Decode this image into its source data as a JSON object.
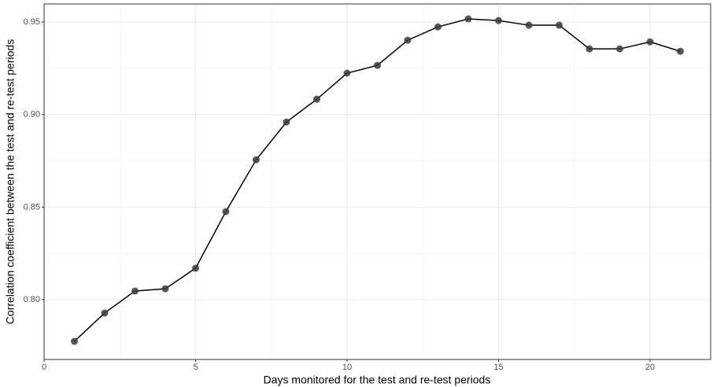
{
  "chart_data": {
    "type": "line",
    "x_label": "Days monitored for the test and re-test periods",
    "y_label": "Correlation coefficient between the test and re-test periods",
    "x": [
      1,
      2,
      3,
      4,
      5,
      6,
      7,
      8,
      9,
      10,
      11,
      12,
      13,
      14,
      15,
      16,
      17,
      18,
      19,
      20,
      21
    ],
    "values": [
      0.7775,
      0.7928,
      0.8047,
      0.8059,
      0.817,
      0.8476,
      0.8756,
      0.896,
      0.9083,
      0.9224,
      0.9266,
      0.9402,
      0.9474,
      0.9517,
      0.9508,
      0.9483,
      0.9483,
      0.9355,
      0.9355,
      0.9393,
      0.9342
    ],
    "color": "#000000",
    "point_color": "#3a3a3a",
    "xlim": [
      0,
      22
    ],
    "ylim": [
      0.7677,
      0.9598
    ],
    "xticks": [
      0,
      5,
      10,
      15,
      20
    ],
    "yticks": [
      {
        "value": 0.8,
        "label": "0.80"
      },
      0.85,
      {
        "value": 0.9,
        "label": "0.90"
      },
      0.95
    ],
    "grid": true,
    "minor_grid": true
  }
}
